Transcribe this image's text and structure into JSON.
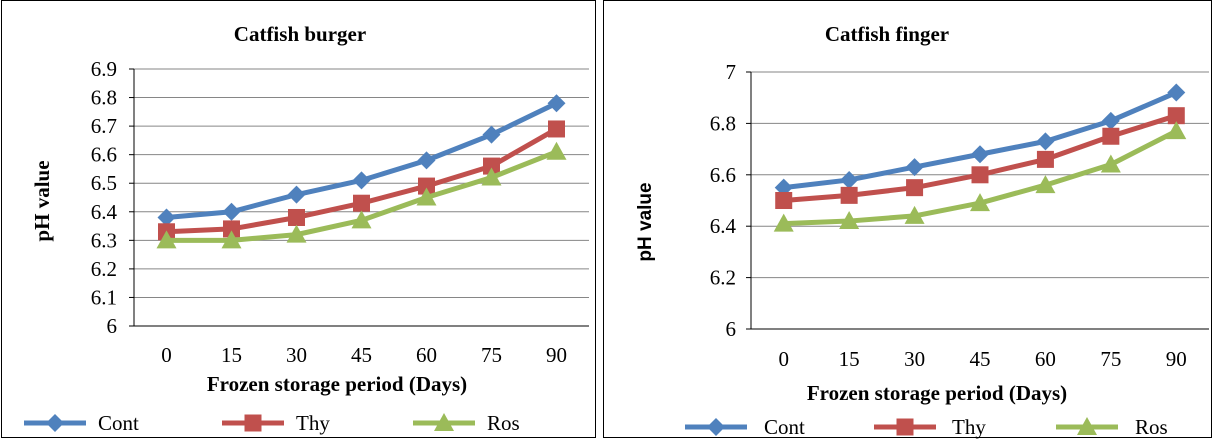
{
  "colors": {
    "Cont": "#4f81bd",
    "Thy": "#c0504d",
    "Ros": "#9bbb59"
  },
  "chart_data": [
    {
      "type": "line",
      "title": "Catfish burger",
      "xlabel": "Frozen storage period (Days)",
      "ylabel": "pH value",
      "categories": [
        "0",
        "15",
        "30",
        "45",
        "60",
        "75",
        "90"
      ],
      "ylim": [
        6,
        6.9
      ],
      "yticks": [
        "6",
        "6.1",
        "6.2",
        "6.3",
        "6.4",
        "6.5",
        "6.6",
        "6.7",
        "6.8",
        "6.9"
      ],
      "grid": true,
      "legend": "bottom",
      "series": [
        {
          "name": "Cont",
          "marker": "diamond",
          "values": [
            6.38,
            6.4,
            6.46,
            6.51,
            6.58,
            6.67,
            6.78
          ]
        },
        {
          "name": "Thy",
          "marker": "square",
          "values": [
            6.33,
            6.34,
            6.38,
            6.43,
            6.49,
            6.56,
            6.69
          ]
        },
        {
          "name": "Ros",
          "marker": "triangle",
          "values": [
            6.3,
            6.3,
            6.32,
            6.37,
            6.45,
            6.52,
            6.61
          ]
        }
      ]
    },
    {
      "type": "line",
      "title": "Catfish finger",
      "xlabel": "Frozen storage period (Days)",
      "ylabel": "pH value",
      "categories": [
        "0",
        "15",
        "30",
        "45",
        "60",
        "75",
        "90"
      ],
      "ylim": [
        6,
        7
      ],
      "yticks": [
        "6",
        "6.2",
        "6.4",
        "6.6",
        "6.8",
        "7"
      ],
      "grid": true,
      "legend": "bottom",
      "series": [
        {
          "name": "Cont",
          "marker": "diamond",
          "values": [
            6.55,
            6.58,
            6.63,
            6.68,
            6.73,
            6.81,
            6.92
          ]
        },
        {
          "name": "Thy",
          "marker": "square",
          "values": [
            6.5,
            6.52,
            6.55,
            6.6,
            6.66,
            6.75,
            6.83
          ]
        },
        {
          "name": "Ros",
          "marker": "triangle",
          "values": [
            6.41,
            6.42,
            6.44,
            6.49,
            6.56,
            6.64,
            6.77
          ]
        }
      ]
    }
  ]
}
